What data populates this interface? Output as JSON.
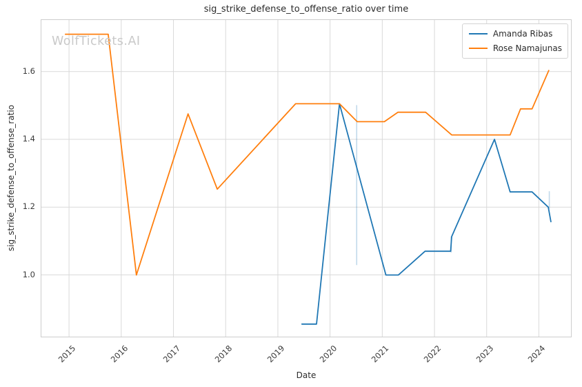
{
  "watermark": {
    "text": "WolfTickets.AI"
  },
  "chart_data": {
    "type": "line",
    "title": "sig_strike_defense_to_offense_ratio over time",
    "xlabel": "Date",
    "ylabel": "sig_strike_defense_to_offense_ratio",
    "xlim": [
      2014.47,
      2024.615
    ],
    "ylim": [
      0.818,
      1.752
    ],
    "x_ticks": [
      2015,
      2016,
      2017,
      2018,
      2019,
      2020,
      2021,
      2022,
      2023,
      2024
    ],
    "y_ticks": [
      1.0,
      1.2,
      1.4,
      1.6
    ],
    "y_tick_labels": [
      "1.0",
      "1.2",
      "1.4",
      "1.6"
    ],
    "grid": true,
    "grid_color": "#d9d9d9",
    "spine_color": "#cccccc",
    "legend_position": "upper right",
    "series": [
      {
        "name": "Amanda Ribas",
        "color": "#1f77b4",
        "points": [
          [
            2019.46,
            0.855
          ],
          [
            2019.74,
            0.855
          ],
          [
            2020.18,
            1.505
          ],
          [
            2021.07,
            1.0
          ],
          [
            2021.31,
            1.0
          ],
          [
            2021.82,
            1.07
          ],
          [
            2022.31,
            1.07
          ],
          [
            2022.33,
            1.113
          ],
          [
            2023.15,
            1.4
          ],
          [
            2023.45,
            1.245
          ],
          [
            2023.87,
            1.245
          ],
          [
            2024.18,
            1.2
          ],
          [
            2024.23,
            1.157
          ]
        ]
      },
      {
        "name": "Rose Namajunas",
        "color": "#ff7f0e",
        "points": [
          [
            2014.93,
            1.71
          ],
          [
            2015.75,
            1.71
          ],
          [
            2016.29,
            1.0
          ],
          [
            2017.28,
            1.475
          ],
          [
            2017.84,
            1.253
          ],
          [
            2019.34,
            1.505
          ],
          [
            2020.18,
            1.505
          ],
          [
            2020.52,
            1.452
          ],
          [
            2021.04,
            1.452
          ],
          [
            2021.3,
            1.48
          ],
          [
            2021.83,
            1.48
          ],
          [
            2022.33,
            1.413
          ],
          [
            2023.45,
            1.413
          ],
          [
            2023.65,
            1.49
          ],
          [
            2023.87,
            1.49
          ],
          [
            2024.19,
            1.603
          ]
        ]
      }
    ],
    "uncertainty_marks": {
      "color": "rgba(31,119,180,0.28)",
      "marks": [
        {
          "x": 2020.51,
          "y0": 1.029,
          "y1": 1.501
        },
        {
          "x": 2022.32,
          "y0": 1.066,
          "y1": 1.113
        },
        {
          "x": 2024.2,
          "y0": 1.195,
          "y1": 1.247
        }
      ]
    }
  }
}
